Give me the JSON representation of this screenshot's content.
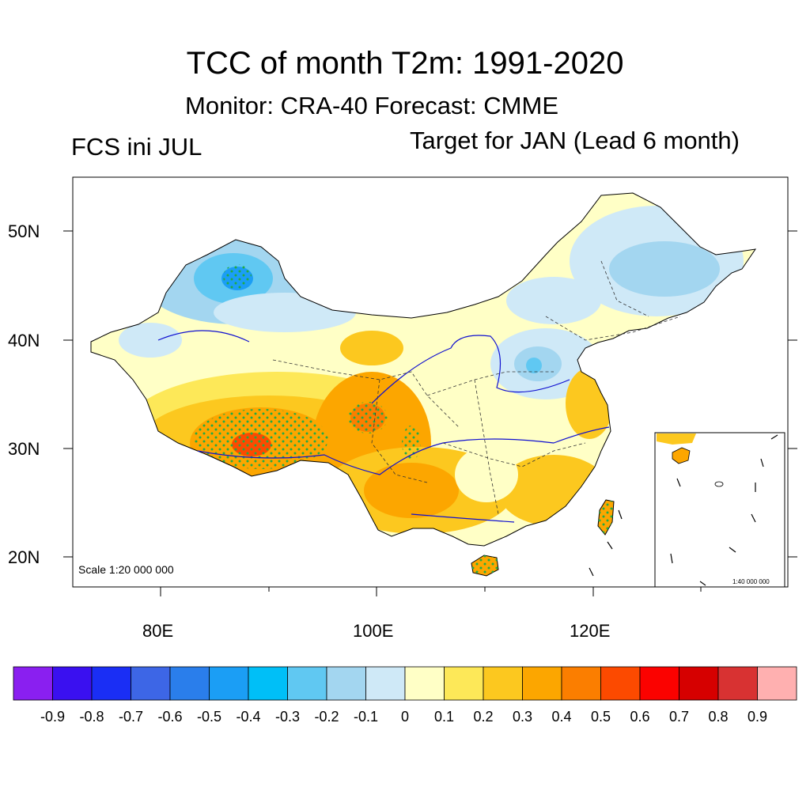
{
  "header": {
    "title": "TCC of month T2m: 1991-2020",
    "subtitle": "Monitor: CRA-40   Forecast: CMME",
    "left_label": "FCS ini JUL",
    "right_label": "Target for JAN (Lead 6 month)"
  },
  "map": {
    "lat_labels": [
      "50N",
      "40N",
      "30N",
      "20N"
    ],
    "lon_labels": [
      "80E",
      "100E",
      "120E"
    ],
    "scale_note": "Scale 1:20 000 000",
    "inset_scale": "1:40 000 000",
    "colors": {
      "ocean": "#ffffff",
      "border": "#000000",
      "river": "#1010d0",
      "stipple": "#22aa44"
    }
  },
  "colorbar": {
    "colors": [
      "#8a1ff0",
      "#3a10f0",
      "#1a2ef5",
      "#3d66e6",
      "#2a7eeb",
      "#1b9ef5",
      "#00bff7",
      "#60c8f2",
      "#a3d6f0",
      "#cfe9f7",
      "#ffffc6",
      "#fde858",
      "#fcc81f",
      "#fca600",
      "#fb7e00",
      "#fc4a00",
      "#fb0200",
      "#d60000",
      "#d83232",
      "#ffb0b0"
    ],
    "labels": [
      "-0.9",
      "-0.8",
      "-0.7",
      "-0.6",
      "-0.5",
      "-0.4",
      "-0.3",
      "-0.2",
      "-0.1",
      "0",
      "0.1",
      "0.2",
      "0.3",
      "0.4",
      "0.5",
      "0.6",
      "0.7",
      "0.8",
      "0.9"
    ]
  }
}
